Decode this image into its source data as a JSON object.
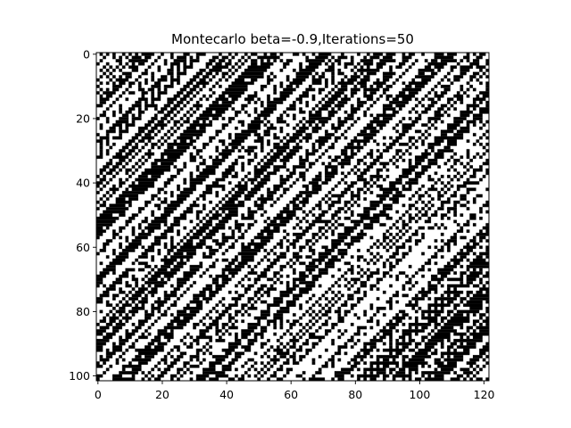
{
  "chart_data": {
    "type": "heatmap",
    "title": "Montecarlo beta=-0.9,Iterations=50",
    "xlabel": "",
    "ylabel": "",
    "grid": false,
    "colormap": "gray",
    "n_cols": 122,
    "n_rows": 102,
    "xlim": [
      -0.5,
      121.5
    ],
    "ylim": [
      101.5,
      -0.5
    ],
    "x_ticks": [
      0,
      20,
      40,
      60,
      80,
      100,
      120
    ],
    "x_tick_labels": [
      "0",
      "20",
      "40",
      "60",
      "80",
      "100",
      "120"
    ],
    "y_ticks": [
      0,
      20,
      40,
      60,
      80,
      100
    ],
    "y_tick_labels": [
      "0",
      "20",
      "40",
      "60",
      "80",
      "100"
    ],
    "values": [
      -1,
      1
    ],
    "pattern": "diagonal stripes of spin states (-1 black, 1 white) running from lower-left to upper-right, with checkerboard patches"
  },
  "colors": {
    "spin_down": "#000000",
    "spin_up": "#ffffff",
    "frame": "#000000"
  }
}
